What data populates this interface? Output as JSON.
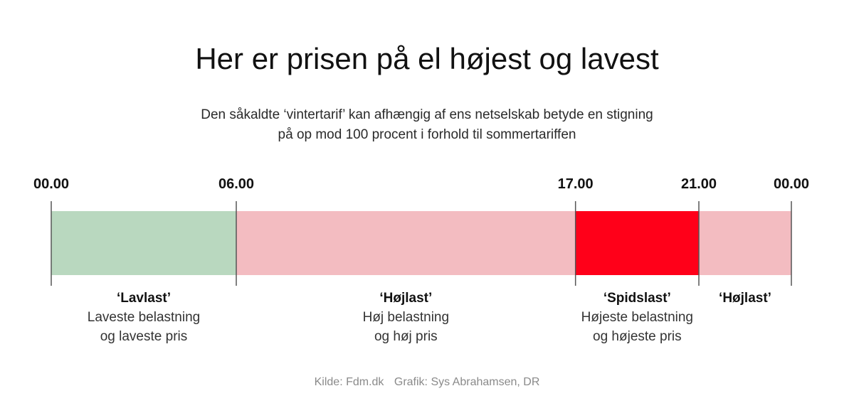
{
  "title": "Her er prisen på el højest og lavest",
  "subtitle": {
    "line1": "Den såkaldte ‘vintertarif’ kan afhængig af ens netselskab betyde en stigning",
    "line2": "på op mod 100 procent i forhold til sommertariffen"
  },
  "colors": {
    "lavlast": "#b9d8bf",
    "hojlast": "#f3bcc1",
    "spidslast": "#ff0019",
    "tick": "#555555"
  },
  "timeline": {
    "start_hour": 0,
    "end_hour": 24,
    "ticks": [
      {
        "hour": 0,
        "label": "00.00"
      },
      {
        "hour": 6,
        "label": "06.00"
      },
      {
        "hour": 17,
        "label": "17.00"
      },
      {
        "hour": 21,
        "label": "21.00"
      },
      {
        "hour": 24,
        "label": "00.00"
      }
    ],
    "segments": [
      {
        "from": 0,
        "to": 6,
        "color_key": "lavlast",
        "name": "‘Lavlast’",
        "lines": [
          "Laveste belastning",
          "og laveste pris"
        ]
      },
      {
        "from": 6,
        "to": 17,
        "color_key": "hojlast",
        "name": "‘Højlast’",
        "lines": [
          "Høj belastning",
          "og høj pris"
        ]
      },
      {
        "from": 17,
        "to": 21,
        "color_key": "spidslast",
        "name": "‘Spidslast’",
        "lines": [
          "Højeste belastning",
          "og højeste pris"
        ]
      },
      {
        "from": 21,
        "to": 24,
        "color_key": "hojlast",
        "name": "‘Højlast’",
        "lines": []
      }
    ]
  },
  "footer": {
    "source": "Kilde: Fdm.dk",
    "credit": "Grafik: Sys Abrahamsen, DR"
  }
}
